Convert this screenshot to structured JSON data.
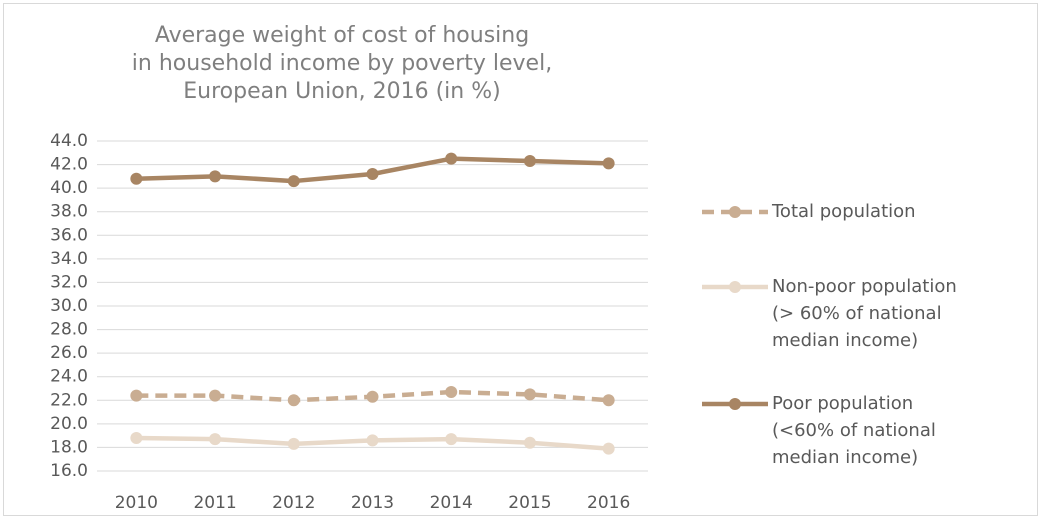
{
  "chart_data": {
    "type": "line",
    "title": "Average weight of cost of housing\nin household income by poverty level,\nEuropean Union, 2016 (in %)",
    "categories": [
      "2010",
      "2011",
      "2012",
      "2013",
      "2014",
      "2015",
      "2016"
    ],
    "series": [
      {
        "name": "Total population",
        "color": "#c9ad92",
        "dashed": true,
        "values": [
          22.4,
          22.4,
          22.0,
          22.3,
          22.7,
          22.5,
          22.0
        ]
      },
      {
        "name": "Non-poor population\n(> 60% of national\nmedian income)",
        "color": "#e8d9c9",
        "dashed": false,
        "values": [
          18.8,
          18.7,
          18.3,
          18.6,
          18.7,
          18.4,
          17.9
        ]
      },
      {
        "name": "Poor population\n(<60% of national\nmedian income)",
        "color": "#a88563",
        "dashed": false,
        "values": [
          40.8,
          41.0,
          40.6,
          41.2,
          42.5,
          42.3,
          42.1
        ]
      }
    ],
    "ylim": [
      16,
      44
    ],
    "yticks": [
      {
        "value": 16,
        "label": "16.0"
      },
      {
        "value": 18,
        "label": "18.0"
      },
      {
        "value": 20,
        "label": "20.0"
      },
      {
        "value": 22,
        "label": "22.0"
      },
      {
        "value": 24,
        "label": "24.0"
      },
      {
        "value": 26,
        "label": "26.0"
      },
      {
        "value": 28,
        "label": "28.0"
      },
      {
        "value": 30,
        "label": "30.0"
      },
      {
        "value": 32,
        "label": "32.0"
      },
      {
        "value": 34,
        "label": "34.0"
      },
      {
        "value": 36,
        "label": "36.0"
      },
      {
        "value": 38,
        "label": "38.0"
      },
      {
        "value": 40,
        "label": "40.0"
      },
      {
        "value": 42,
        "label": "42.0"
      },
      {
        "value": 44,
        "label": "44.0"
      }
    ],
    "grid": true,
    "legend": "right"
  }
}
